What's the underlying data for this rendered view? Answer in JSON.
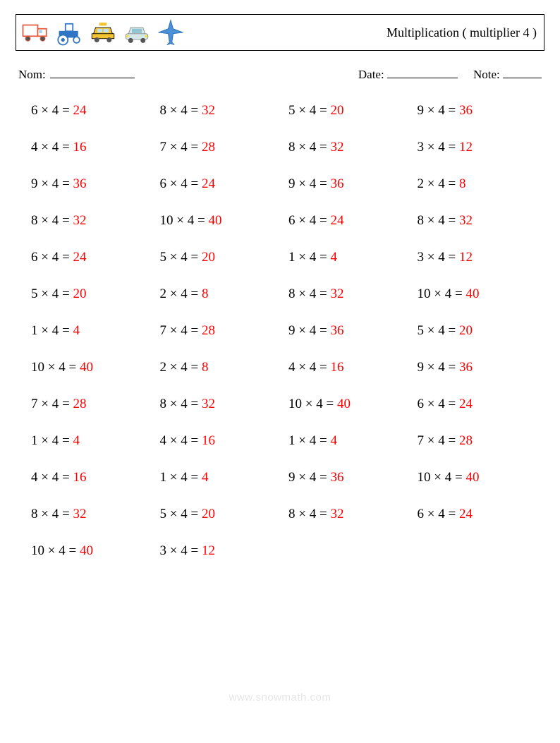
{
  "header": {
    "title": "Multiplication ( multiplier 4 )",
    "icons": [
      "truck-icon",
      "tractor-icon",
      "taxi-icon",
      "car-icon",
      "airplane-icon"
    ]
  },
  "info": {
    "name_label": "Nom:",
    "date_label": "Date:",
    "note_label": "Note:"
  },
  "style": {
    "answer_color": "#ff0000",
    "text_color": "#000000",
    "border_color": "#000000",
    "background": "#ffffff",
    "font_family": "Georgia, 'Times New Roman', serif",
    "problem_fontsize": 19,
    "title_fontsize": 18,
    "info_fontsize": 17,
    "columns": 4,
    "row_gap": 30,
    "footer_color": "#e6e6e6"
  },
  "multiplier": 4,
  "problems": [
    {
      "a": 6,
      "b": 4,
      "ans": 24
    },
    {
      "a": 8,
      "b": 4,
      "ans": 32
    },
    {
      "a": 5,
      "b": 4,
      "ans": 20
    },
    {
      "a": 9,
      "b": 4,
      "ans": 36
    },
    {
      "a": 4,
      "b": 4,
      "ans": 16
    },
    {
      "a": 7,
      "b": 4,
      "ans": 28
    },
    {
      "a": 8,
      "b": 4,
      "ans": 32
    },
    {
      "a": 3,
      "b": 4,
      "ans": 12
    },
    {
      "a": 9,
      "b": 4,
      "ans": 36
    },
    {
      "a": 6,
      "b": 4,
      "ans": 24
    },
    {
      "a": 9,
      "b": 4,
      "ans": 36
    },
    {
      "a": 2,
      "b": 4,
      "ans": 8
    },
    {
      "a": 8,
      "b": 4,
      "ans": 32
    },
    {
      "a": 10,
      "b": 4,
      "ans": 40
    },
    {
      "a": 6,
      "b": 4,
      "ans": 24
    },
    {
      "a": 8,
      "b": 4,
      "ans": 32
    },
    {
      "a": 6,
      "b": 4,
      "ans": 24
    },
    {
      "a": 5,
      "b": 4,
      "ans": 20
    },
    {
      "a": 1,
      "b": 4,
      "ans": 4
    },
    {
      "a": 3,
      "b": 4,
      "ans": 12
    },
    {
      "a": 5,
      "b": 4,
      "ans": 20
    },
    {
      "a": 2,
      "b": 4,
      "ans": 8
    },
    {
      "a": 8,
      "b": 4,
      "ans": 32
    },
    {
      "a": 10,
      "b": 4,
      "ans": 40
    },
    {
      "a": 1,
      "b": 4,
      "ans": 4
    },
    {
      "a": 7,
      "b": 4,
      "ans": 28
    },
    {
      "a": 9,
      "b": 4,
      "ans": 36
    },
    {
      "a": 5,
      "b": 4,
      "ans": 20
    },
    {
      "a": 10,
      "b": 4,
      "ans": 40
    },
    {
      "a": 2,
      "b": 4,
      "ans": 8
    },
    {
      "a": 4,
      "b": 4,
      "ans": 16
    },
    {
      "a": 9,
      "b": 4,
      "ans": 36
    },
    {
      "a": 7,
      "b": 4,
      "ans": 28
    },
    {
      "a": 8,
      "b": 4,
      "ans": 32
    },
    {
      "a": 10,
      "b": 4,
      "ans": 40
    },
    {
      "a": 6,
      "b": 4,
      "ans": 24
    },
    {
      "a": 1,
      "b": 4,
      "ans": 4
    },
    {
      "a": 4,
      "b": 4,
      "ans": 16
    },
    {
      "a": 1,
      "b": 4,
      "ans": 4
    },
    {
      "a": 7,
      "b": 4,
      "ans": 28
    },
    {
      "a": 4,
      "b": 4,
      "ans": 16
    },
    {
      "a": 1,
      "b": 4,
      "ans": 4
    },
    {
      "a": 9,
      "b": 4,
      "ans": 36
    },
    {
      "a": 10,
      "b": 4,
      "ans": 40
    },
    {
      "a": 8,
      "b": 4,
      "ans": 32
    },
    {
      "a": 5,
      "b": 4,
      "ans": 20
    },
    {
      "a": 8,
      "b": 4,
      "ans": 32
    },
    {
      "a": 6,
      "b": 4,
      "ans": 24
    },
    {
      "a": 10,
      "b": 4,
      "ans": 40
    },
    {
      "a": 3,
      "b": 4,
      "ans": 12
    }
  ],
  "footer": "www.snowmath.com"
}
